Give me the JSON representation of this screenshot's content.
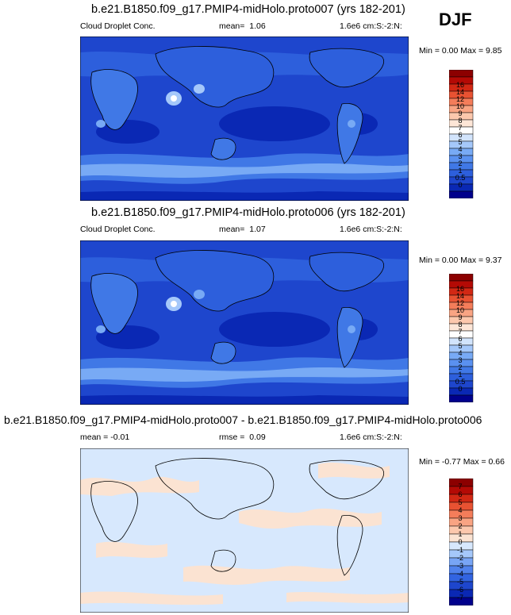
{
  "season": "DJF",
  "colors": {
    "main_scale": [
      "#00008c",
      "#0a28b4",
      "#1e46cd",
      "#2d5fdc",
      "#4078e6",
      "#5a91f0",
      "#78aaf5",
      "#a5c8fa",
      "#d2e4fc",
      "#ffffff",
      "#fde6d7",
      "#fcc8ad",
      "#f9a483",
      "#f47d5a",
      "#e85232",
      "#d22814",
      "#b40a05",
      "#8c0000"
    ],
    "diff_scale": [
      "#00008c",
      "#0a28b4",
      "#1e46cd",
      "#3264e1",
      "#5082ec",
      "#78a5f5",
      "#a5c8fa",
      "#d7e8fd",
      "#fbe3d2",
      "#fcc8ad",
      "#f9a483",
      "#f47d5a",
      "#e85232",
      "#d22814",
      "#b40a05",
      "#8c0000"
    ]
  },
  "panels": [
    {
      "title": "b.e21.B1850.f09_g17.PMIP4-midHolo.proto007 (yrs 182-201)",
      "left_label": "Cloud Droplet Conc.",
      "stat_label": "mean=",
      "stat_value": "1.06",
      "units": "1.6e6 cm:S:-2:N:",
      "min_max": "Min =  0.00 Max =   9.85",
      "colorbar_labels": [
        "16",
        "14",
        "12",
        "10",
        "9",
        "8",
        "7",
        "6",
        "5",
        "4",
        "3",
        "2",
        "1",
        "0.5",
        "0"
      ]
    },
    {
      "title": "b.e21.B1850.f09_g17.PMIP4-midHolo.proto006 (yrs 182-201)",
      "left_label": "Cloud Droplet Conc.",
      "stat_label": "mean=",
      "stat_value": "1.07",
      "units": "1.6e6 cm:S:-2:N:",
      "min_max": "Min =  0.00 Max =   9.37",
      "colorbar_labels": [
        "16",
        "14",
        "12",
        "10",
        "9",
        "8",
        "7",
        "6",
        "5",
        "4",
        "3",
        "2",
        "1",
        "0.5",
        "0"
      ]
    },
    {
      "title": "b.e21.B1850.f09_g17.PMIP4-midHolo.proto007 - b.e21.B1850.f09_g17.PMIP4-midHolo.proto006",
      "left_label": "mean =  -0.01",
      "stat_label": "rmse =",
      "stat_value": "0.09",
      "units": "1.6e6 cm:S:-2:N:",
      "min_max": "Min =  -0.77 Max =   0.66",
      "colorbar_labels": [
        "7",
        "6",
        "5",
        "4",
        "3",
        "2",
        "1",
        "0",
        "-1",
        "-2",
        "-3",
        "-4",
        "-5",
        "-6",
        "-7"
      ]
    }
  ]
}
